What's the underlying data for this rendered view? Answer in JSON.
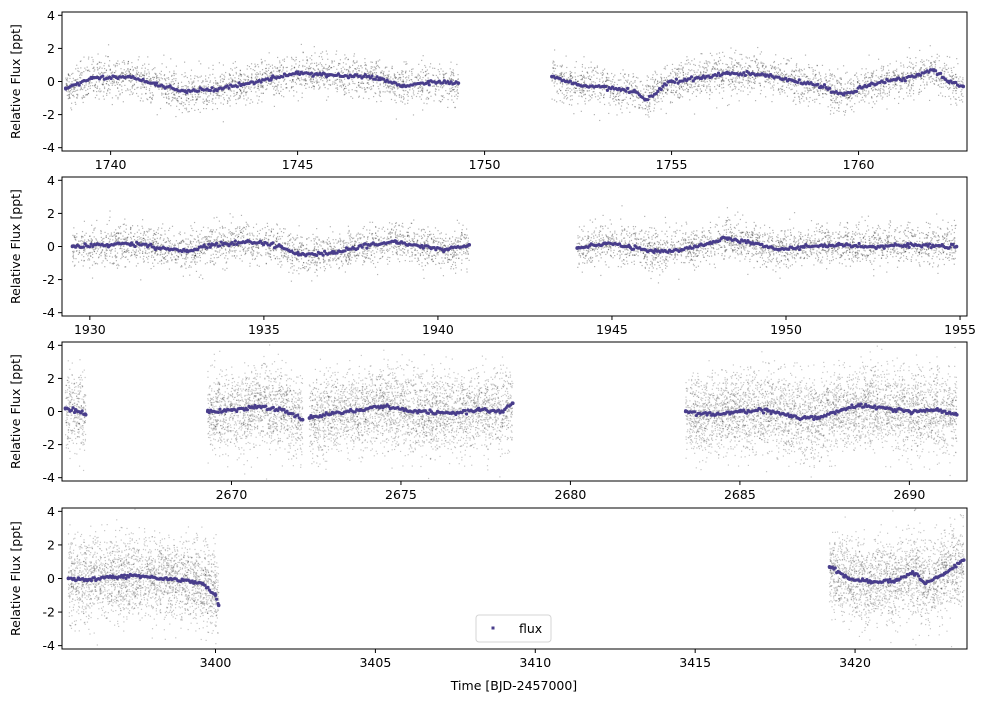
{
  "figure": {
    "xlabel": "Time [BJD-2457000]",
    "legend": {
      "label": "flux",
      "placement": "lower center",
      "marker_color": "#483d8b"
    }
  },
  "colors": {
    "raw_points": "#000000",
    "binned_points": "#483d8b"
  },
  "chart_data": [
    {
      "type": "scatter",
      "panel": 1,
      "ylabel": "Relative Flux [ppt]",
      "xlim": [
        1738.7,
        1762.9
      ],
      "ylim": [
        -4.2,
        4.2
      ],
      "x_ticks": [
        1740,
        1745,
        1750,
        1755,
        1760
      ],
      "y_ticks": [
        -4,
        -2,
        0,
        2,
        4
      ],
      "segments": [
        [
          1738.8,
          1749.3
        ],
        [
          1751.8,
          1762.8
        ]
      ],
      "raw_scatter_ppt": 0.6,
      "series": [
        {
          "name": "flux",
          "x": [
            1738.8,
            1739.5,
            1740.5,
            1741.2,
            1742.0,
            1742.8,
            1743.5,
            1744.3,
            1745.0,
            1745.8,
            1746.5,
            1747.2,
            1747.8,
            1748.5,
            1749.3,
            1751.8,
            1752.5,
            1753.2,
            1754.0,
            1754.3,
            1755.0,
            1755.8,
            1756.5,
            1757.5,
            1758.3,
            1759.0,
            1759.6,
            1760.3,
            1761.0,
            1761.6,
            1762.0,
            1762.4,
            1762.8
          ],
          "y": [
            -0.4,
            0.2,
            0.3,
            -0.2,
            -0.6,
            -0.5,
            -0.2,
            0.2,
            0.5,
            0.4,
            0.3,
            0.2,
            -0.3,
            0.0,
            -0.1,
            0.3,
            -0.2,
            -0.3,
            -0.6,
            -1.1,
            0.0,
            0.2,
            0.5,
            0.4,
            0.0,
            -0.3,
            -0.8,
            -0.2,
            0.1,
            0.4,
            0.7,
            0.0,
            -0.3
          ]
        }
      ]
    },
    {
      "type": "scatter",
      "panel": 2,
      "ylabel": "Relative Flux [ppt]",
      "xlim": [
        1929.2,
        1955.2
      ],
      "ylim": [
        -4.2,
        4.2
      ],
      "x_ticks": [
        1930,
        1935,
        1940,
        1945,
        1950,
        1955
      ],
      "y_ticks": [
        -4,
        -2,
        0,
        2,
        4
      ],
      "segments": [
        [
          1929.5,
          1940.9
        ],
        [
          1944.0,
          1954.9
        ]
      ],
      "raw_scatter_ppt": 0.6,
      "series": [
        {
          "name": "flux",
          "x": [
            1929.5,
            1930.5,
            1931.2,
            1932.0,
            1932.8,
            1933.5,
            1934.5,
            1935.5,
            1936.0,
            1937.0,
            1938.0,
            1938.8,
            1939.5,
            1940.2,
            1940.9,
            1944.0,
            1944.8,
            1945.5,
            1946.2,
            1947.0,
            1947.8,
            1948.3,
            1949.0,
            1949.8,
            1950.5,
            1951.5,
            1952.5,
            1953.5,
            1954.9
          ],
          "y": [
            0.0,
            0.1,
            0.2,
            -0.1,
            -0.3,
            0.1,
            0.3,
            0.0,
            -0.5,
            -0.4,
            0.1,
            0.3,
            0.0,
            -0.2,
            0.1,
            -0.1,
            0.2,
            0.0,
            -0.3,
            -0.2,
            0.2,
            0.5,
            0.2,
            -0.2,
            0.0,
            0.1,
            0.0,
            0.1,
            0.0
          ]
        }
      ]
    },
    {
      "type": "scatter",
      "panel": 3,
      "ylabel": "Relative Flux [ppt]",
      "xlim": [
        2665.0,
        2691.7
      ],
      "ylim": [
        -4.2,
        4.2
      ],
      "x_ticks": [
        2670,
        2675,
        2680,
        2685,
        2690
      ],
      "y_ticks": [
        -4,
        -2,
        0,
        2,
        4
      ],
      "segments": [
        [
          2665.1,
          2665.7
        ],
        [
          2669.3,
          2672.1
        ],
        [
          2672.3,
          2678.3
        ],
        [
          2683.4,
          2691.4
        ]
      ],
      "raw_scatter_ppt": 1.2,
      "series": [
        {
          "name": "flux",
          "x": [
            2665.1,
            2665.4,
            2665.7,
            2669.3,
            2670.0,
            2670.8,
            2671.5,
            2672.1,
            2672.3,
            2673.0,
            2673.8,
            2674.5,
            2675.5,
            2676.5,
            2677.3,
            2678.0,
            2678.3,
            2683.4,
            2684.2,
            2685.0,
            2685.8,
            2686.5,
            2687.3,
            2688.0,
            2688.5,
            2689.3,
            2690.0,
            2690.8,
            2691.4
          ],
          "y": [
            0.2,
            0.1,
            -0.2,
            0.0,
            0.1,
            0.3,
            0.1,
            -0.5,
            -0.4,
            -0.1,
            0.1,
            0.3,
            0.0,
            -0.1,
            0.1,
            0.0,
            0.5,
            0.0,
            -0.2,
            0.0,
            0.1,
            -0.3,
            -0.4,
            0.1,
            0.4,
            0.2,
            0.0,
            0.1,
            -0.2
          ]
        }
      ]
    },
    {
      "type": "scatter",
      "panel": 4,
      "ylabel": "Relative Flux [ppt]",
      "xlim": [
        3395.2,
        3423.5
      ],
      "ylim": [
        -4.2,
        4.2
      ],
      "x_ticks": [
        3400,
        3405,
        3410,
        3415,
        3420
      ],
      "y_ticks": [
        -4,
        -2,
        0,
        2,
        4
      ],
      "segments": [
        [
          3395.4,
          3400.1
        ],
        [
          3419.2,
          3423.4
        ]
      ],
      "raw_scatter_ppt": 1.2,
      "series": [
        {
          "name": "flux",
          "x": [
            3395.4,
            3396.0,
            3396.8,
            3397.5,
            3398.3,
            3399.0,
            3399.6,
            3400.0,
            3400.1,
            3419.2,
            3419.8,
            3420.5,
            3421.3,
            3421.8,
            3422.2,
            3422.8,
            3423.4
          ],
          "y": [
            0.0,
            -0.1,
            0.1,
            0.2,
            0.0,
            -0.1,
            -0.3,
            -1.0,
            -1.6,
            0.7,
            0.0,
            -0.2,
            -0.1,
            0.4,
            -0.3,
            0.3,
            1.1
          ]
        }
      ]
    }
  ]
}
